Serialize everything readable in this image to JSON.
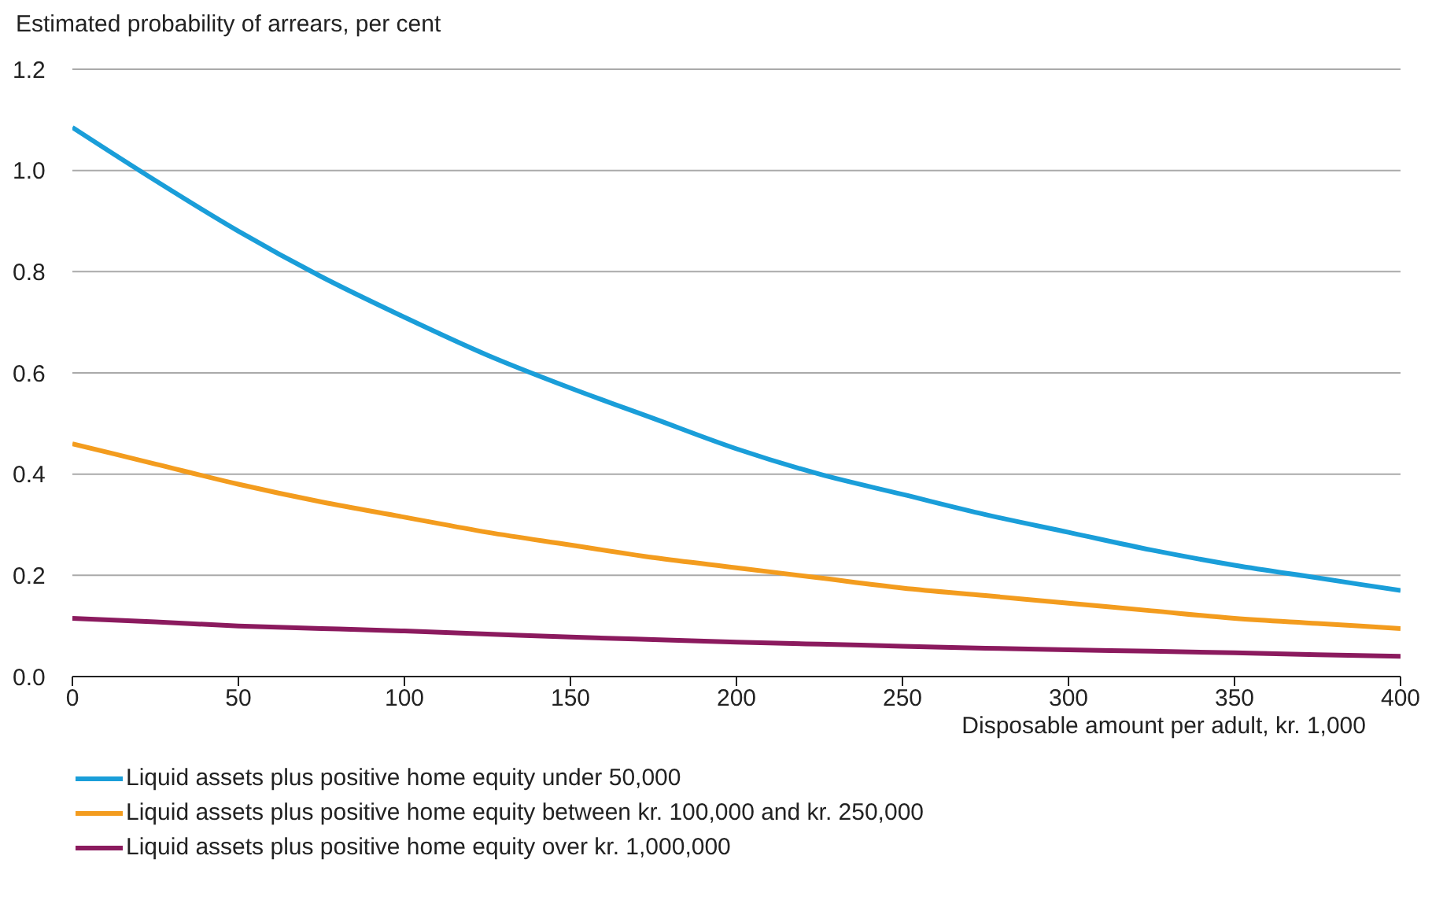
{
  "chart_data": {
    "type": "line",
    "ylabel": "Estimated probability of arrears, per cent",
    "xlabel": "Disposable amount per adult, kr. 1,000",
    "x": [
      0,
      25,
      50,
      75,
      100,
      125,
      150,
      175,
      200,
      225,
      250,
      275,
      300,
      325,
      350,
      375,
      400
    ],
    "series": [
      {
        "name": "Liquid assets plus positive home equity under 50,000",
        "color": "#1a9ed9",
        "values": [
          1.085,
          0.98,
          0.88,
          0.79,
          0.71,
          0.635,
          0.57,
          0.51,
          0.45,
          0.4,
          0.36,
          0.32,
          0.285,
          0.25,
          0.22,
          0.195,
          0.17
        ]
      },
      {
        "name": "Liquid assets plus positive home equity between kr. 100,000 and kr. 250,000",
        "color": "#f39c1e",
        "values": [
          0.46,
          0.42,
          0.38,
          0.345,
          0.315,
          0.285,
          0.26,
          0.235,
          0.215,
          0.195,
          0.175,
          0.16,
          0.145,
          0.13,
          0.115,
          0.105,
          0.095
        ]
      },
      {
        "name": "Liquid assets plus positive home equity over kr. 1,000,000",
        "color": "#8b1a5e",
        "values": [
          0.115,
          0.108,
          0.1,
          0.095,
          0.09,
          0.084,
          0.078,
          0.073,
          0.068,
          0.064,
          0.06,
          0.056,
          0.053,
          0.05,
          0.047,
          0.043,
          0.04
        ]
      }
    ],
    "xlim": [
      0,
      400
    ],
    "xticks": [
      0,
      50,
      100,
      150,
      200,
      250,
      300,
      350,
      400
    ],
    "ylim": [
      0,
      1.2
    ],
    "yticks": [
      {
        "value": 0,
        "label": "0.0"
      },
      {
        "value": 0.2,
        "label": "0.2"
      },
      {
        "value": 0.4,
        "label": "0.4"
      },
      {
        "value": 0.6,
        "label": "0.6"
      },
      {
        "value": 0.8,
        "label": "0.8"
      },
      {
        "value": 1,
        "label": "1.0"
      },
      {
        "value": 1.2,
        "label": "1.2"
      }
    ],
    "grid": "y",
    "legend": "bottom left",
    "marker": "none",
    "line_style": "solid"
  }
}
